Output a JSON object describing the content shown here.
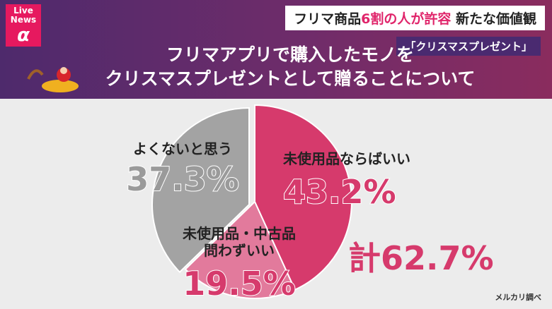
{
  "header": {
    "logo_top": "Live",
    "logo_mid": "News",
    "logo_mark": "α",
    "headline": [
      "フリマ商品",
      "6割の人が許容",
      " 新たな価値観"
    ],
    "subtitle": "「クリスマスプレゼント」"
  },
  "chart_data": {
    "type": "pie",
    "title": "フリマアプリで購入したモノを\nクリスマスプレゼントとして贈ることについて",
    "categories": [
      "未使用品ならばいい",
      "未使用品・中古品\n問わずいい",
      "よくないと思う"
    ],
    "values": [
      43.2,
      19.5,
      37.3
    ],
    "value_labels": [
      "43.2%",
      "19.5%",
      "37.3%"
    ],
    "colors": [
      "#d63a6c",
      "#e27a9c",
      "#a3a3a3"
    ],
    "total_label": "計62.7%",
    "source": "メルカリ調べ"
  }
}
